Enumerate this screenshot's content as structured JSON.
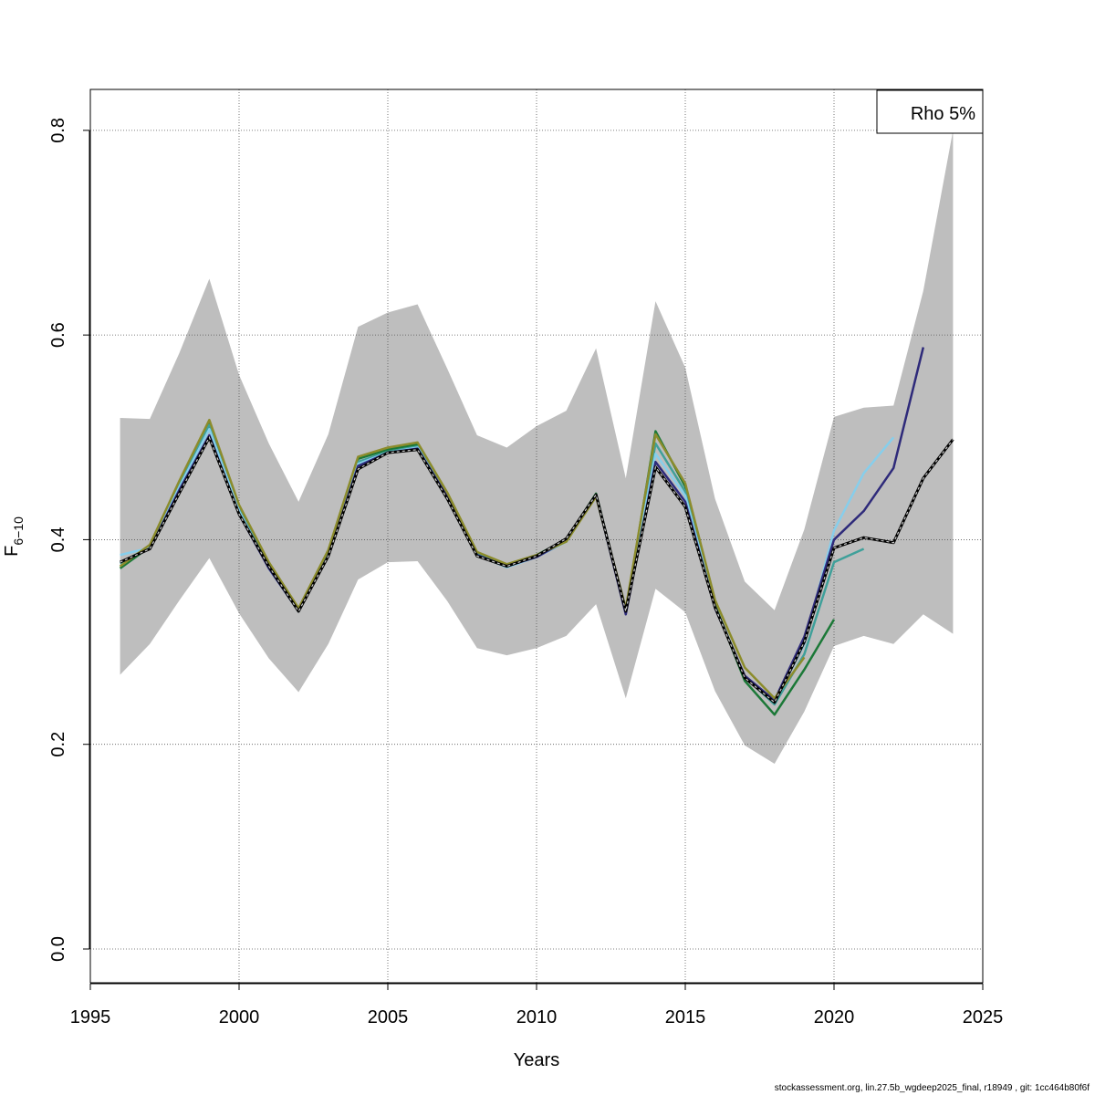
{
  "chart_data": {
    "type": "line",
    "xlabel": "Years",
    "ylabel": "F",
    "ylabel_sub": "6−10",
    "xlim": [
      1995,
      2025
    ],
    "ylim": [
      -0.033,
      0.84
    ],
    "xticks": [
      1995,
      2000,
      2005,
      2010,
      2015,
      2020,
      2025
    ],
    "yticks": [
      0.0,
      0.2,
      0.4,
      0.6,
      0.8
    ],
    "ytick_labels": [
      "0.0",
      "0.2",
      "0.4",
      "0.6",
      "0.8"
    ],
    "grid": true,
    "legend": {
      "position": "top-right",
      "text": "Rho 5%"
    },
    "band": {
      "x": [
        1996,
        1997,
        1998,
        1999,
        2000,
        2001,
        2002,
        2003,
        2004,
        2005,
        2006,
        2007,
        2008,
        2009,
        2010,
        2011,
        2012,
        2013,
        2014,
        2015,
        2016,
        2017,
        2018,
        2019,
        2020,
        2021,
        2022,
        2023,
        2024
      ],
      "upper": [
        0.519,
        0.518,
        0.583,
        0.655,
        0.561,
        0.494,
        0.437,
        0.503,
        0.608,
        0.622,
        0.63,
        0.567,
        0.502,
        0.49,
        0.511,
        0.526,
        0.587,
        0.46,
        0.633,
        0.568,
        0.44,
        0.359,
        0.331,
        0.41,
        0.52,
        0.529,
        0.531,
        0.643,
        0.8
      ],
      "lower": [
        0.268,
        0.298,
        0.341,
        0.382,
        0.328,
        0.284,
        0.251,
        0.298,
        0.361,
        0.378,
        0.379,
        0.34,
        0.294,
        0.287,
        0.294,
        0.306,
        0.337,
        0.245,
        0.352,
        0.329,
        0.252,
        0.199,
        0.181,
        0.232,
        0.296,
        0.306,
        0.298,
        0.327,
        0.308
      ],
      "color": "#bebebe"
    },
    "series": [
      {
        "color": "#1b7837",
        "x": [
          1996,
          1997,
          1998,
          1999,
          2000,
          2001,
          2002,
          2003,
          2004,
          2005,
          2006,
          2007,
          2008,
          2009,
          2010,
          2011,
          2012,
          2013,
          2014,
          2015,
          2016,
          2017,
          2018,
          2019,
          2020
        ],
        "values": [
          0.372,
          0.393,
          0.456,
          0.516,
          0.432,
          0.376,
          0.33,
          0.387,
          0.479,
          0.488,
          0.493,
          0.444,
          0.387,
          0.375,
          0.385,
          0.4,
          0.445,
          0.329,
          0.506,
          0.452,
          0.336,
          0.262,
          0.229,
          0.273,
          0.322
        ]
      },
      {
        "color": "#3fa09a",
        "x": [
          1996,
          1997,
          1998,
          1999,
          2000,
          2001,
          2002,
          2003,
          2004,
          2005,
          2006,
          2007,
          2008,
          2009,
          2010,
          2011,
          2012,
          2013,
          2014,
          2015,
          2016,
          2017,
          2018,
          2019,
          2020,
          2021
        ],
        "values": [
          0.377,
          0.393,
          0.456,
          0.512,
          0.43,
          0.374,
          0.33,
          0.386,
          0.476,
          0.486,
          0.491,
          0.443,
          0.386,
          0.375,
          0.384,
          0.399,
          0.444,
          0.33,
          0.494,
          0.447,
          0.335,
          0.266,
          0.239,
          0.288,
          0.378,
          0.391
        ]
      },
      {
        "color": "#87ceeb",
        "x": [
          1996,
          1997,
          1998,
          1999,
          2000,
          2001,
          2002,
          2003,
          2004,
          2005,
          2006,
          2007,
          2008,
          2009,
          2010,
          2011,
          2012,
          2013,
          2014,
          2015,
          2016,
          2017,
          2018,
          2019,
          2020,
          2021,
          2022
        ],
        "values": [
          0.385,
          0.392,
          0.452,
          0.508,
          0.428,
          0.372,
          0.33,
          0.385,
          0.474,
          0.485,
          0.49,
          0.442,
          0.385,
          0.373,
          0.383,
          0.398,
          0.443,
          0.33,
          0.484,
          0.443,
          0.334,
          0.266,
          0.241,
          0.298,
          0.409,
          0.465,
          0.5
        ]
      },
      {
        "color": "#2e2a7a",
        "x": [
          1996,
          1997,
          1998,
          1999,
          2000,
          2001,
          2002,
          2003,
          2004,
          2005,
          2006,
          2007,
          2008,
          2009,
          2010,
          2011,
          2012,
          2013,
          2014,
          2015,
          2016,
          2017,
          2018,
          2019,
          2020,
          2021,
          2022,
          2023
        ],
        "values": [
          0.378,
          0.391,
          0.449,
          0.502,
          0.425,
          0.372,
          0.33,
          0.384,
          0.472,
          0.485,
          0.489,
          0.442,
          0.385,
          0.374,
          0.383,
          0.399,
          0.444,
          0.327,
          0.476,
          0.437,
          0.333,
          0.267,
          0.243,
          0.305,
          0.4,
          0.428,
          0.47,
          0.588
        ]
      },
      {
        "color": "#8c8c2c",
        "x": [
          1996,
          1997,
          1998,
          1999,
          2000,
          2001,
          2002,
          2003,
          2004,
          2005,
          2006,
          2007,
          2008,
          2009,
          2010,
          2011,
          2012,
          2013,
          2014,
          2015,
          2016,
          2017,
          2018,
          2019
        ],
        "values": [
          0.374,
          0.395,
          0.458,
          0.517,
          0.434,
          0.378,
          0.333,
          0.39,
          0.481,
          0.49,
          0.495,
          0.446,
          0.388,
          0.376,
          0.385,
          0.398,
          0.442,
          0.333,
          0.503,
          0.455,
          0.341,
          0.275,
          0.245,
          0.285
        ]
      },
      {
        "color": "#000000",
        "dashed_overlay": true,
        "x": [
          1996,
          1997,
          1998,
          1999,
          2000,
          2001,
          2002,
          2003,
          2004,
          2005,
          2006,
          2007,
          2008,
          2009,
          2010,
          2011,
          2012,
          2013,
          2014,
          2015,
          2016,
          2017,
          2018,
          2019,
          2020,
          2021,
          2022,
          2023,
          2024
        ],
        "values": [
          0.378,
          0.391,
          0.446,
          0.5,
          0.425,
          0.374,
          0.33,
          0.384,
          0.469,
          0.485,
          0.488,
          0.44,
          0.384,
          0.374,
          0.384,
          0.401,
          0.444,
          0.33,
          0.471,
          0.432,
          0.334,
          0.265,
          0.241,
          0.3,
          0.392,
          0.402,
          0.397,
          0.46,
          0.498
        ]
      }
    ]
  },
  "footer": "stockassessment.org, lin.27.5b_wgdeep2025_final, r18949 , git: 1cc464b80f6f"
}
